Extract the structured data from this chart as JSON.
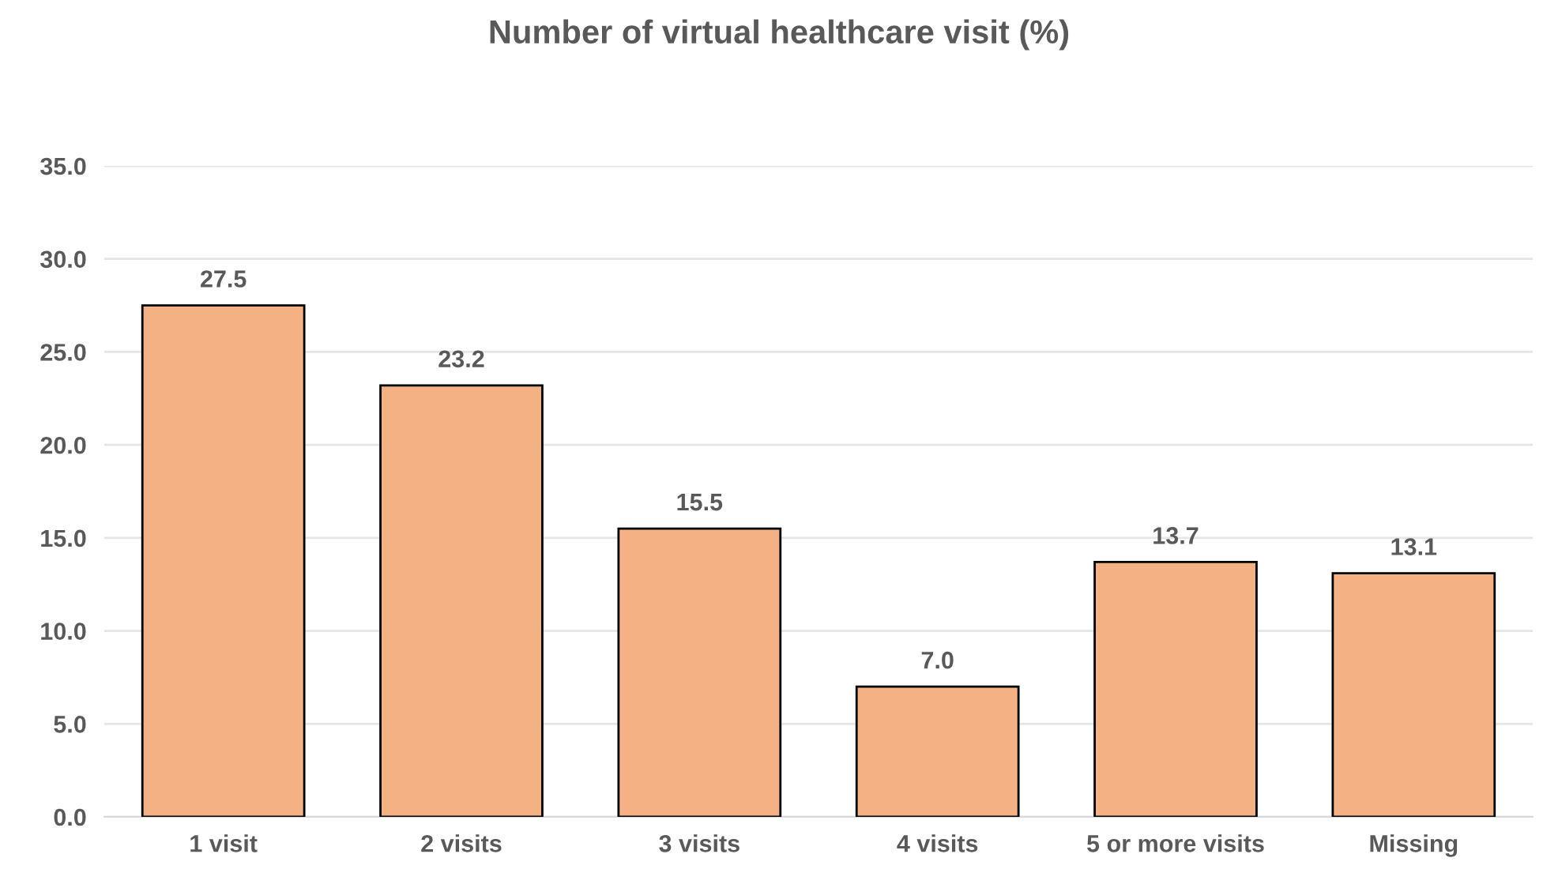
{
  "chart_data": {
    "type": "bar",
    "title": "Number of virtual healthcare visit (%)",
    "categories": [
      "1 visit",
      "2 visits",
      "3 visits",
      "4 visits",
      "5 or more visits",
      "Missing"
    ],
    "values": [
      27.5,
      23.2,
      15.5,
      7.0,
      13.7,
      13.1
    ],
    "color": "#f4b183",
    "value_labels": [
      "27.5",
      "23.2",
      "15.5",
      "7.0",
      "13.7",
      "13.1"
    ],
    "ylim": [
      0,
      35
    ],
    "yticks": [
      {
        "value": 0,
        "label": "0.0"
      },
      {
        "value": 5,
        "label": "5.0"
      },
      {
        "value": 10,
        "label": "10.0"
      },
      {
        "value": 15,
        "label": "15.0"
      },
      {
        "value": 20,
        "label": "20.0"
      },
      {
        "value": 25,
        "label": "25.0"
      },
      {
        "value": 30,
        "label": "30.0"
      },
      {
        "value": 35,
        "label": "35.0"
      }
    ],
    "grid": "y"
  }
}
